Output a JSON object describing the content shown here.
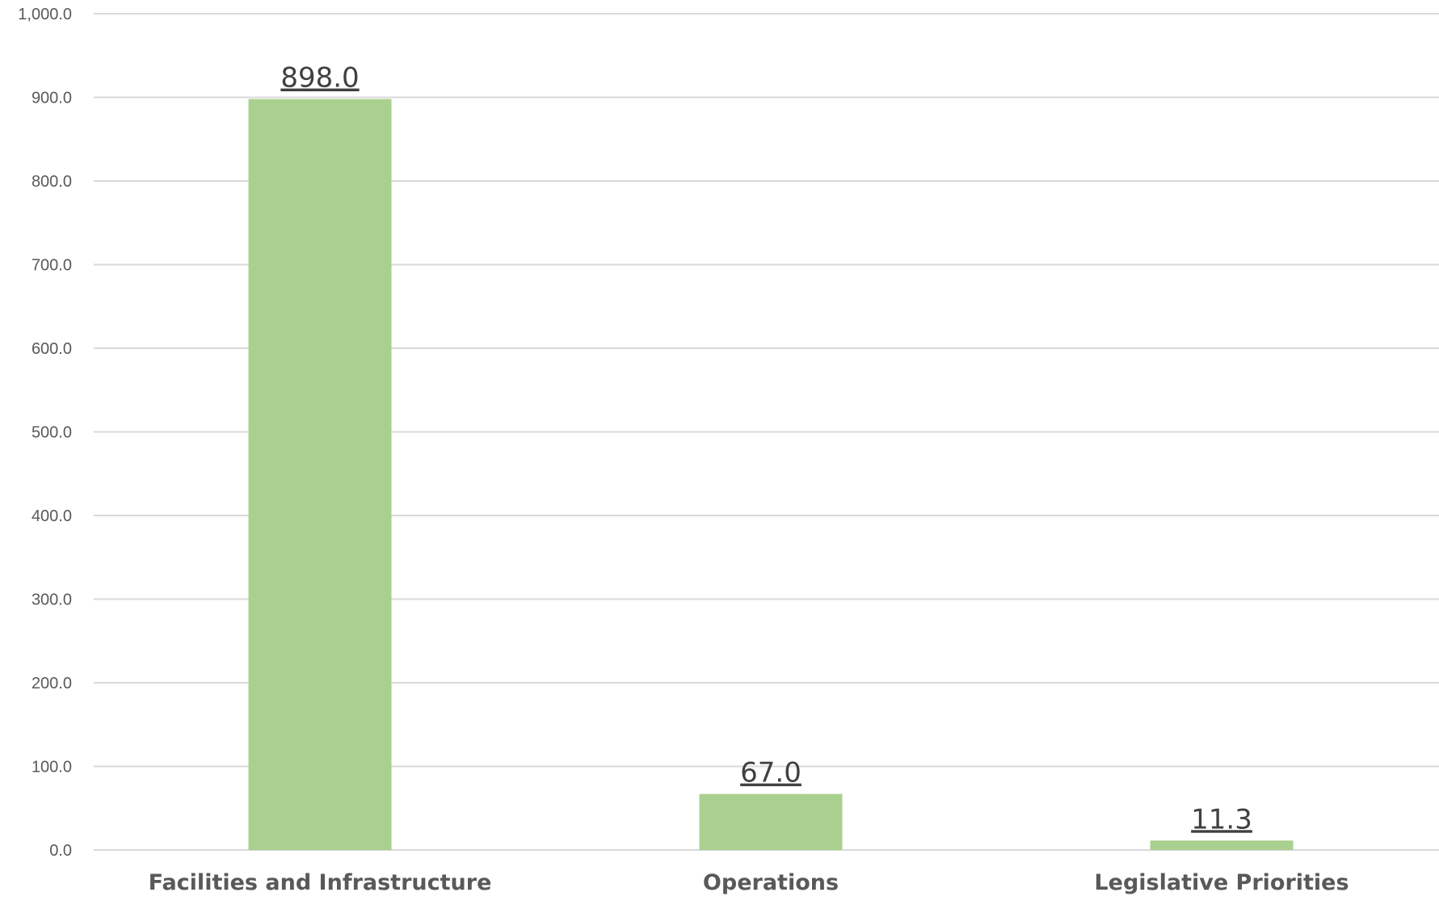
{
  "chart_data": {
    "type": "bar",
    "categories": [
      "Facilities and Infrastructure",
      "Operations",
      "Legislative Priorities"
    ],
    "values": [
      898.0,
      67.0,
      11.3
    ],
    "value_labels": [
      "898.0",
      "67.0",
      "11.3"
    ],
    "title": "",
    "xlabel": "",
    "ylabel": "",
    "ylim": [
      0,
      1000
    ],
    "y_ticks": [
      0,
      100,
      200,
      300,
      400,
      500,
      600,
      700,
      800,
      900,
      1000
    ],
    "y_tick_labels": [
      "0.0",
      "100.0",
      "200.0",
      "300.0",
      "400.0",
      "500.0",
      "600.0",
      "700.0",
      "800.0",
      "900.0",
      "1,000.0"
    ],
    "grid": true,
    "legend": "none",
    "colors": {
      "bar": "#a9d08e",
      "grid": "#d9d9d9",
      "axis_text": "#595959",
      "value_text": "#404040"
    }
  }
}
